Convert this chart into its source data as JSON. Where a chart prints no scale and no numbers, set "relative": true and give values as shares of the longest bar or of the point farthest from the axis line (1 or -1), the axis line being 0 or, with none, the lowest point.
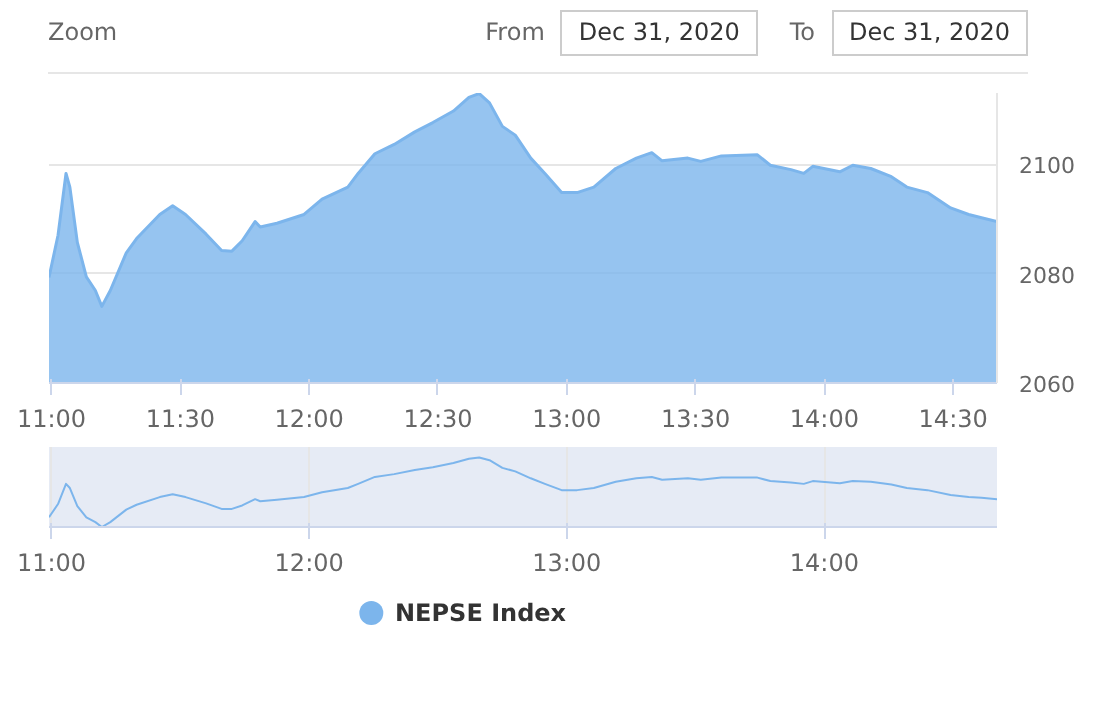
{
  "chart_data": [
    {
      "type": "area",
      "annotations": [
        "Zoom",
        "From",
        "Dec 31, 2020",
        "To",
        "Dec 31, 2020"
      ],
      "x": [
        10.99,
        11.025,
        11.056,
        11.071,
        11.1,
        11.135,
        11.17,
        11.195,
        11.228,
        11.29,
        11.33,
        11.42,
        11.47,
        11.52,
        11.6,
        11.66,
        11.7,
        11.74,
        11.79,
        11.81,
        11.875,
        11.98,
        12.05,
        12.15,
        12.19,
        12.255,
        12.33,
        12.41,
        12.48,
        12.56,
        12.62,
        12.66,
        12.7,
        12.75,
        12.8,
        12.86,
        12.915,
        12.98,
        13.04,
        13.105,
        13.19,
        13.27,
        13.33,
        13.37,
        13.47,
        13.52,
        13.6,
        13.74,
        13.79,
        13.87,
        13.92,
        13.955,
        14.06,
        14.11,
        14.18,
        14.26,
        14.32,
        14.4,
        14.49,
        14.56,
        14.61,
        14.67
      ],
      "series": [
        {
          "color": "#7cb5ec",
          "values": [
            2079.3,
            2087.0,
            2098.3,
            2095.8,
            2085.7,
            2079.4,
            2076.9,
            2074.0,
            2076.9,
            2083.8,
            2086.4,
            2090.8,
            2092.4,
            2090.8,
            2087.2,
            2084.2,
            2084.1,
            2086.0,
            2089.5,
            2088.5,
            2089.2,
            2090.8,
            2093.6,
            2095.8,
            2098.3,
            2101.9,
            2103.6,
            2105.9,
            2107.6,
            2109.7,
            2112.2,
            2112.9,
            2111.2,
            2106.9,
            2105.3,
            2101.1,
            2098.3,
            2094.8,
            2094.8,
            2095.8,
            2099.2,
            2101.1,
            2102.1,
            2100.6,
            2101.1,
            2100.5,
            2101.5,
            2101.7,
            2099.8,
            2099.0,
            2098.3,
            2099.6,
            2098.6,
            2099.8,
            2099.2,
            2097.7,
            2095.8,
            2094.8,
            2092.0,
            2090.8,
            2090.2,
            2089.5
          ]
        }
      ],
      "xlim": [
        10.99,
        14.67
      ],
      "ylim": [
        2060,
        2113
      ],
      "xticks": [
        {
          "value": 11,
          "label": "11:00"
        },
        {
          "value": 11.5,
          "label": "11:30"
        },
        {
          "value": 12,
          "label": "12:00"
        },
        {
          "value": 12.5,
          "label": "12:30"
        },
        {
          "value": 13,
          "label": "13:00"
        },
        {
          "value": 13.5,
          "label": "13:30"
        },
        {
          "value": 14,
          "label": "14:00"
        },
        {
          "value": 14.5,
          "label": "14:30"
        }
      ],
      "yticks": [
        2060,
        2080,
        2100
      ],
      "grid": "y"
    },
    {
      "type": "line",
      "x": [
        10.99,
        11.025,
        11.056,
        11.071,
        11.1,
        11.135,
        11.17,
        11.195,
        11.228,
        11.29,
        11.33,
        11.42,
        11.47,
        11.52,
        11.6,
        11.66,
        11.7,
        11.74,
        11.79,
        11.81,
        11.875,
        11.98,
        12.05,
        12.15,
        12.19,
        12.255,
        12.33,
        12.41,
        12.48,
        12.56,
        12.62,
        12.66,
        12.7,
        12.75,
        12.8,
        12.86,
        12.915,
        12.98,
        13.04,
        13.105,
        13.19,
        13.27,
        13.33,
        13.37,
        13.47,
        13.52,
        13.6,
        13.74,
        13.79,
        13.87,
        13.92,
        13.955,
        14.06,
        14.11,
        14.18,
        14.26,
        14.32,
        14.4,
        14.49,
        14.56,
        14.61,
        14.67
      ],
      "series": [
        {
          "name": "NEPSE Index",
          "color": "#7cb5ec",
          "values": [
            0.14,
            0.33,
            0.62,
            0.56,
            0.3,
            0.14,
            0.07,
            0,
            0.07,
            0.25,
            0.32,
            0.43,
            0.47,
            0.43,
            0.34,
            0.26,
            0.26,
            0.31,
            0.4,
            0.37,
            0.39,
            0.43,
            0.5,
            0.56,
            0.62,
            0.72,
            0.76,
            0.82,
            0.86,
            0.92,
            0.98,
            1,
            0.96,
            0.85,
            0.8,
            0.7,
            0.62,
            0.53,
            0.53,
            0.56,
            0.65,
            0.7,
            0.72,
            0.68,
            0.7,
            0.68,
            0.71,
            0.71,
            0.66,
            0.64,
            0.62,
            0.66,
            0.63,
            0.66,
            0.65,
            0.61,
            0.56,
            0.53,
            0.46,
            0.43,
            0.42,
            0.4
          ]
        }
      ],
      "relative": true,
      "xlim": [
        10.99,
        14.67
      ],
      "xticks": [
        {
          "value": 11,
          "label": "11:00"
        },
        {
          "value": 12,
          "label": "12:00"
        },
        {
          "value": 13,
          "label": "13:00"
        },
        {
          "value": 14,
          "label": "14:00"
        }
      ],
      "tick_labels": "x",
      "grid": "x",
      "legend": "bottom"
    }
  ]
}
